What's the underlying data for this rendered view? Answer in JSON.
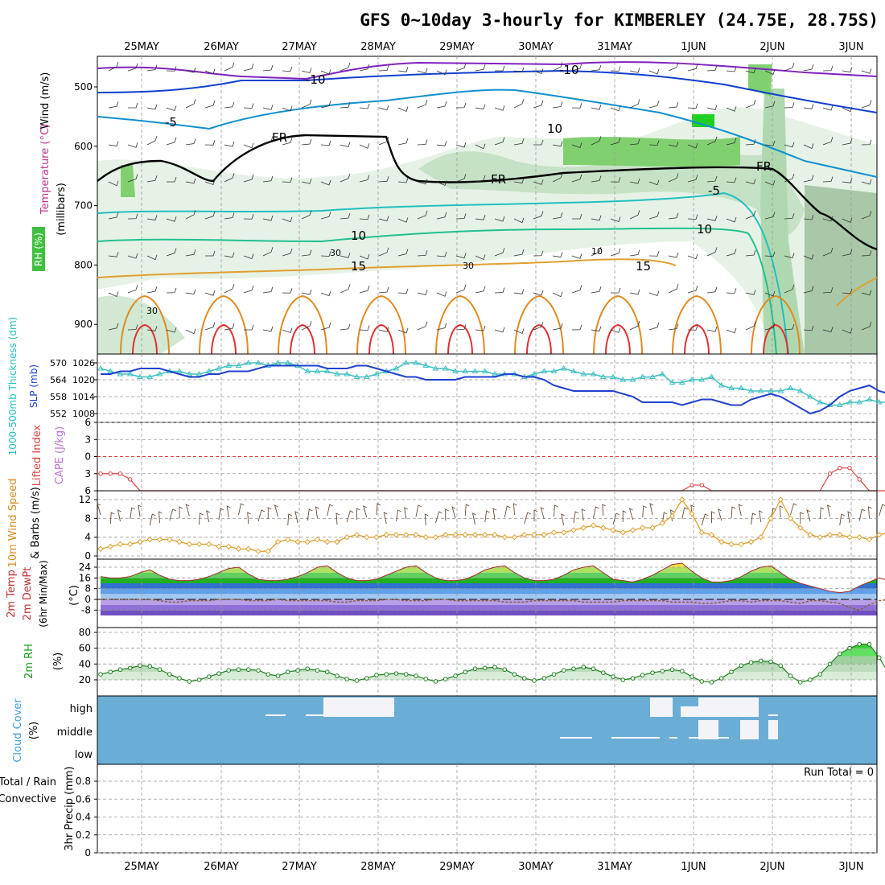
{
  "title": "GFS 0~10day 3-hourly for KIMBERLEY (24.75E, 28.75S)",
  "days": [
    "25MAY",
    "26MAY",
    "27MAY",
    "28MAY",
    "29MAY",
    "30MAY",
    "31MAY",
    "1JUN",
    "2JUN",
    "3JUN"
  ],
  "run_total_label": "Run Total = 0",
  "colors": {
    "temp_hot": "#e03030",
    "temp_warm": "#e08a20",
    "temp_mild": "#e8b030",
    "rh": "#6ad060",
    "cloud": "#6aaed6",
    "thick": "#40c0c0",
    "slp": "#2040d0"
  },
  "chart_data": [
    {
      "type": "heatmap",
      "panel": "upper_air",
      "labels": {
        "wind": "Wind (m/s)",
        "temp": "Temperature (°C)",
        "rh": "RH (%)",
        "axis": "(millibars)"
      },
      "yticks": [
        500,
        600,
        700,
        800,
        900
      ],
      "isotherm_labels": [
        "-10",
        "-10",
        "-5",
        "-5",
        "FR",
        "FR",
        "FR",
        "10",
        "10",
        "10",
        "15",
        "15",
        "30",
        "30",
        "30",
        "10"
      ]
    },
    {
      "type": "line",
      "panel": "thickness_slp",
      "labels": {
        "left": "1000-500mb Thickness (dm)",
        "right": "SLP (mb)"
      },
      "thickness_ticks": [
        570,
        564,
        558,
        552
      ],
      "slp_ticks": [
        1026,
        1020,
        1014,
        1008
      ],
      "series": [
        {
          "name": "1000-500mb Thickness",
          "values": [
            568,
            567,
            566,
            566,
            565,
            565,
            566,
            567,
            567,
            566,
            566,
            567,
            568,
            569,
            569,
            570,
            570,
            569,
            570,
            570,
            569,
            567,
            567,
            567,
            566,
            566,
            565,
            565,
            566,
            567,
            568,
            570,
            570,
            569,
            568,
            568,
            567,
            567,
            567,
            567,
            566,
            566,
            566,
            565,
            566,
            567,
            567,
            568,
            567,
            566,
            566,
            565,
            565,
            564,
            564,
            565,
            565,
            566,
            563,
            563,
            564,
            564,
            565,
            562,
            561,
            561,
            560,
            560,
            560,
            560,
            561,
            560,
            558,
            556,
            555,
            555,
            556,
            556,
            557,
            556,
            556,
            555,
            554,
            553,
            552,
            551,
            550
          ]
        },
        {
          "name": "SLP",
          "values": [
            1022,
            1022,
            1023,
            1023,
            1024,
            1024,
            1024,
            1023,
            1022,
            1021,
            1021,
            1022,
            1022,
            1023,
            1023,
            1023,
            1024,
            1025,
            1025,
            1025,
            1025,
            1025,
            1025,
            1024,
            1024,
            1024,
            1025,
            1025,
            1024,
            1023,
            1022,
            1021,
            1021,
            1020,
            1020,
            1020,
            1020,
            1021,
            1021,
            1021,
            1021,
            1022,
            1022,
            1021,
            1021,
            1020,
            1018,
            1017,
            1016,
            1016,
            1016,
            1016,
            1016,
            1015,
            1014,
            1012,
            1012,
            1012,
            1012,
            1011,
            1012,
            1013,
            1013,
            1012,
            1011,
            1011,
            1013,
            1014,
            1015,
            1014,
            1012,
            1010,
            1008,
            1009,
            1011,
            1014,
            1016,
            1017,
            1018,
            1016,
            1015,
            1017,
            1018,
            1019,
            1020,
            1021,
            1022
          ]
        }
      ]
    },
    {
      "type": "line",
      "panel": "instability",
      "labels": {
        "left": "Lifted Index",
        "right": "CAPE (J/kg)"
      },
      "li_ticks": [
        -6,
        -3,
        0,
        3,
        6
      ],
      "series": [
        {
          "name": "Lifted Index",
          "values": [
            3,
            3,
            3,
            4,
            6,
            6,
            6,
            6,
            6,
            6,
            6,
            6,
            6,
            6,
            6,
            6,
            6,
            6,
            6,
            6,
            6,
            6,
            6,
            6,
            6,
            6,
            6,
            6,
            6,
            6,
            6,
            6,
            6,
            6,
            6,
            6,
            6,
            6,
            6,
            6,
            6,
            6,
            6,
            6,
            6,
            6,
            6,
            6,
            6,
            6,
            6,
            6,
            6,
            6,
            6,
            6,
            6,
            6,
            6,
            6,
            5,
            5,
            6,
            6,
            6,
            6,
            6,
            6,
            6,
            6,
            6,
            6,
            6,
            6,
            3,
            2,
            2,
            4,
            6,
            6,
            6,
            6,
            6,
            6,
            6,
            6,
            6
          ]
        }
      ]
    },
    {
      "type": "line",
      "panel": "wind10m",
      "labels": {
        "left": "10m Wind Speed",
        "right": "& Barbs (m/s)"
      },
      "yticks": [
        0,
        4,
        8,
        12
      ],
      "series": [
        {
          "name": "10m Wind Speed",
          "values": [
            1.5,
            2,
            2.5,
            2.5,
            3,
            3.5,
            3.5,
            3.5,
            3,
            2.5,
            2.5,
            2.5,
            2,
            2,
            1.5,
            1.5,
            1,
            1,
            3,
            3.5,
            3,
            3,
            3.5,
            3,
            3,
            4,
            4.5,
            4,
            4,
            4.5,
            4.5,
            4.5,
            4.5,
            4,
            4,
            4.5,
            4.5,
            4.5,
            4.5,
            4.5,
            4.5,
            4,
            4,
            4.5,
            4.5,
            4.5,
            5,
            5,
            5.5,
            6,
            6.5,
            6,
            5.5,
            5,
            5.5,
            6,
            6,
            7,
            8.5,
            12,
            9,
            5,
            4.5,
            3,
            2.5,
            2.5,
            3,
            4,
            8,
            12,
            8,
            6,
            4.5,
            4,
            4.5,
            4.5,
            4,
            4,
            3.5,
            4.5,
            5,
            5.5,
            4.5,
            4,
            3.5,
            2,
            0.8
          ]
        }
      ]
    },
    {
      "type": "area",
      "panel": "temperature",
      "labels": {
        "left": "2m Temp 2m DewPt (6hr Min/Max)",
        "right": "(°C)"
      },
      "yticks": [
        24,
        16,
        8,
        0,
        -8
      ],
      "series": [
        {
          "name": "2m Temp",
          "values": [
            17,
            16,
            16,
            17,
            20,
            22,
            18,
            15,
            14,
            14,
            15,
            17,
            20,
            23,
            24,
            19,
            15,
            14,
            14,
            15,
            17,
            20,
            24,
            25,
            20,
            16,
            14,
            14,
            15,
            18,
            21,
            24,
            25,
            20,
            16,
            14,
            14,
            15,
            18,
            22,
            24,
            25,
            20,
            16,
            14,
            14,
            15,
            18,
            22,
            24,
            25,
            20,
            15,
            14,
            13,
            15,
            18,
            22,
            26,
            27,
            21,
            16,
            13,
            13,
            14,
            17,
            21,
            24,
            25,
            20,
            15,
            12,
            10,
            8,
            6,
            5,
            6,
            10,
            13,
            16,
            14,
            10,
            7,
            5,
            3,
            2,
            3
          ]
        },
        {
          "name": "2m DewPt",
          "values": [
            0,
            0,
            0,
            0,
            0,
            0,
            -1,
            -2,
            -2,
            -1,
            -1,
            -1,
            0,
            0,
            0,
            -1,
            -1,
            -1,
            0,
            -1,
            -1,
            -1,
            -1,
            -1,
            -2,
            -2,
            -1,
            -1,
            -1,
            0,
            0,
            -1,
            -1,
            -1,
            0,
            0,
            -1,
            -1,
            -1,
            -1,
            -1,
            -2,
            -2,
            -2,
            -1,
            -1,
            -1,
            -1,
            -1,
            -2,
            -2,
            -2,
            -2,
            -1,
            -1,
            -1,
            -1,
            -1,
            -2,
            -2,
            -2,
            -3,
            -3,
            -2,
            -1,
            -1,
            -2,
            -1,
            -1,
            -1,
            -2,
            -3,
            -1,
            -1,
            -2,
            -3,
            -6,
            -8,
            -4,
            -1,
            0,
            0,
            1,
            2,
            2,
            2,
            2
          ]
        }
      ]
    },
    {
      "type": "area",
      "panel": "rh2m",
      "labels": {
        "left": "2m RH",
        "right": "(%)"
      },
      "yticks": [
        20,
        40,
        60,
        80
      ],
      "series": [
        {
          "name": "2m RH",
          "values": [
            27,
            30,
            33,
            35,
            38,
            37,
            33,
            27,
            22,
            18,
            20,
            24,
            28,
            32,
            33,
            33,
            32,
            27,
            25,
            30,
            32,
            34,
            32,
            30,
            25,
            21,
            19,
            22,
            26,
            27,
            28,
            27,
            25,
            21,
            18,
            21,
            25,
            30,
            34,
            35,
            36,
            33,
            27,
            22,
            19,
            22,
            27,
            32,
            34,
            36,
            34,
            29,
            24,
            20,
            22,
            26,
            29,
            31,
            33,
            31,
            24,
            18,
            17,
            22,
            30,
            38,
            42,
            44,
            43,
            38,
            25,
            17,
            20,
            27,
            40,
            53,
            60,
            65,
            65,
            48,
            28,
            15,
            30,
            55,
            70,
            78,
            70
          ]
        }
      ]
    },
    {
      "type": "heatmap",
      "panel": "cloud_cover",
      "labels": {
        "left": "Cloud Cover",
        "right": "(%)"
      },
      "levels": [
        "high",
        "middle",
        "low"
      ]
    },
    {
      "type": "bar",
      "panel": "precip",
      "labels": {
        "left1": "Total / Rain",
        "left2": "Convective",
        "right": "3hr Precip (mm)"
      },
      "yticks": [
        0,
        0.2,
        0.4,
        0.6,
        0.8
      ],
      "series": [
        {
          "name": "3hr Precip",
          "values": []
        }
      ]
    }
  ]
}
